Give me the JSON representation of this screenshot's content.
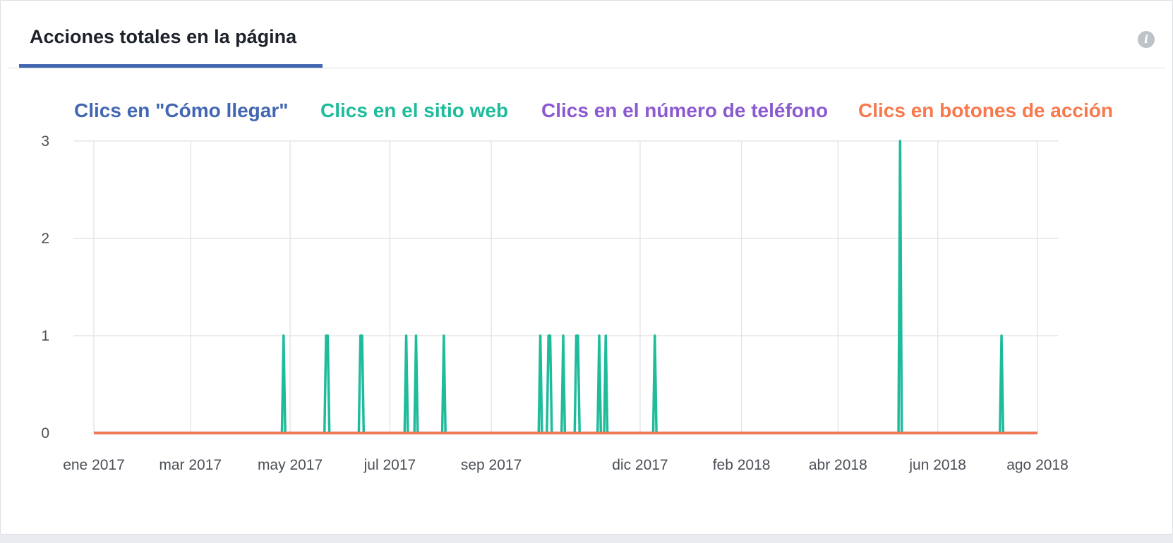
{
  "tab": {
    "label": "Acciones totales en la página"
  },
  "info_icon": {
    "glyph": "i"
  },
  "chart_data": {
    "type": "line",
    "title": "",
    "xlabel": "",
    "ylabel": "",
    "x_range": [
      "2017-01-01",
      "2018-08-01"
    ],
    "ylim": [
      0,
      3
    ],
    "y_ticks": [
      0,
      1,
      2,
      3
    ],
    "x_ticks": [
      {
        "date": "2017-01-01",
        "label": "ene 2017"
      },
      {
        "date": "2017-03-01",
        "label": "mar 2017"
      },
      {
        "date": "2017-05-01",
        "label": "may 2017"
      },
      {
        "date": "2017-07-01",
        "label": "jul 2017"
      },
      {
        "date": "2017-09-01",
        "label": "sep 2017"
      },
      {
        "date": "2017-12-01",
        "label": "dic 2017"
      },
      {
        "date": "2018-02-01",
        "label": "feb 2018"
      },
      {
        "date": "2018-04-01",
        "label": "abr 2018"
      },
      {
        "date": "2018-06-01",
        "label": "jun 2018"
      },
      {
        "date": "2018-08-01",
        "label": "ago 2018"
      }
    ],
    "grid": true,
    "legend_position": "top",
    "series": [
      {
        "name": "Clics en \"Cómo llegar\"",
        "color": "#4267b2",
        "points": []
      },
      {
        "name": "Clics en el sitio web",
        "color": "#1fbc9c",
        "points": [
          {
            "date": "2017-04-27",
            "value": 1
          },
          {
            "date": "2017-05-23",
            "value": 1
          },
          {
            "date": "2017-05-24",
            "value": 1
          },
          {
            "date": "2017-06-13",
            "value": 1
          },
          {
            "date": "2017-06-14",
            "value": 1
          },
          {
            "date": "2017-07-11",
            "value": 1
          },
          {
            "date": "2017-07-17",
            "value": 1
          },
          {
            "date": "2017-08-03",
            "value": 1
          },
          {
            "date": "2017-10-01",
            "value": 1
          },
          {
            "date": "2017-10-06",
            "value": 1
          },
          {
            "date": "2017-10-07",
            "value": 1
          },
          {
            "date": "2017-10-15",
            "value": 1
          },
          {
            "date": "2017-10-23",
            "value": 1
          },
          {
            "date": "2017-10-24",
            "value": 1
          },
          {
            "date": "2017-11-06",
            "value": 1
          },
          {
            "date": "2017-11-10",
            "value": 1
          },
          {
            "date": "2017-12-10",
            "value": 1
          },
          {
            "date": "2018-05-09",
            "value": 3
          },
          {
            "date": "2018-07-10",
            "value": 1
          }
        ]
      },
      {
        "name": "Clics en el número de teléfono",
        "color": "#8c5ad0",
        "points": []
      },
      {
        "name": "Clics en botones de acción",
        "color": "#f7794d",
        "points": []
      }
    ]
  }
}
